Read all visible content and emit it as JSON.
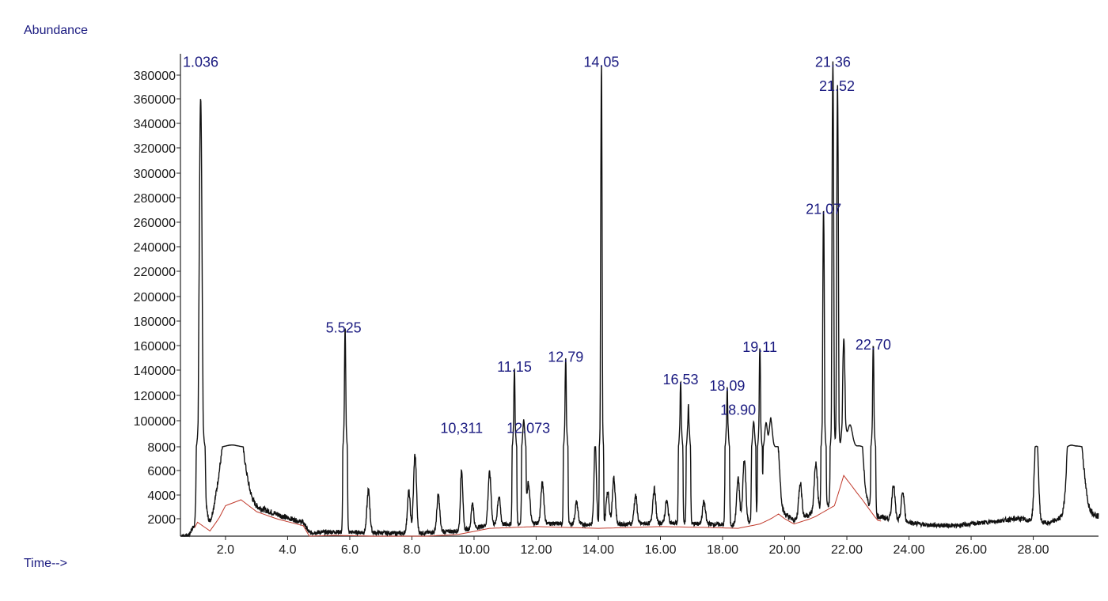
{
  "chart_data": {
    "type": "line",
    "ylabel": "Abundance",
    "xlabel": "Time-->",
    "x_ticks": [
      {
        "v": 2,
        "label": "2.0"
      },
      {
        "v": 4,
        "label": "4.0"
      },
      {
        "v": 6,
        "label": "6.0"
      },
      {
        "v": 8,
        "label": "8.0"
      },
      {
        "v": 10,
        "label": "10.00"
      },
      {
        "v": 12,
        "label": "12.00"
      },
      {
        "v": 14,
        "label": "14.00"
      },
      {
        "v": 16,
        "label": "16.00"
      },
      {
        "v": 18,
        "label": "18.00"
      },
      {
        "v": 20,
        "label": "20.00"
      },
      {
        "v": 22,
        "label": "22.00"
      },
      {
        "v": 24,
        "label": "24.00"
      },
      {
        "v": 26,
        "label": "26.00"
      },
      {
        "v": 28,
        "label": "28.00"
      }
    ],
    "y_ticks": [
      "2000",
      "4000",
      "6000",
      "8000",
      "100000",
      "120000",
      "140000",
      "160000",
      "180000",
      "200000",
      "220000",
      "240000",
      "260000",
      "280000",
      "300000",
      "320000",
      "340000",
      "360000",
      "380000"
    ],
    "peak_labels": [
      {
        "label": "1.036",
        "x": 1.2,
        "y": 388000
      },
      {
        "label": "5.525",
        "x": 5.8,
        "y": 172000
      },
      {
        "label": "10,311",
        "x": 9.6,
        "y": 62000
      },
      {
        "label": "11.15",
        "x": 11.3,
        "y": 140000
      },
      {
        "label": "12.073",
        "x": 11.75,
        "y": 62000
      },
      {
        "label": "12.79",
        "x": 12.95,
        "y": 148000
      },
      {
        "label": "14.05",
        "x": 14.1,
        "y": 388000
      },
      {
        "label": "16.53",
        "x": 16.65,
        "y": 130000
      },
      {
        "label": "18.09",
        "x": 18.15,
        "y": 125000
      },
      {
        "label": "18.90",
        "x": 18.5,
        "y": 106000
      },
      {
        "label": "19.11",
        "x": 19.2,
        "y": 156000
      },
      {
        "label": "21.07",
        "x": 21.25,
        "y": 268000
      },
      {
        "label": "21.36",
        "x": 21.55,
        "y": 388000
      },
      {
        "label": "21.52",
        "x": 21.68,
        "y": 368000
      },
      {
        "label": "22.70",
        "x": 22.85,
        "y": 158000
      }
    ],
    "series": [
      {
        "peaks": [
          [
            1.2,
            358000,
            0.05
          ],
          [
            1.32,
            2000,
            0.08
          ],
          [
            2.0,
            4500,
            0.25
          ],
          [
            2.2,
            5500,
            0.15
          ],
          [
            2.45,
            4000,
            0.2
          ],
          [
            5.85,
            174000,
            0.03
          ],
          [
            6.6,
            4000,
            0.05
          ],
          [
            7.9,
            4000,
            0.05
          ],
          [
            8.1,
            7000,
            0.05
          ],
          [
            8.85,
            3500,
            0.05
          ],
          [
            9.6,
            5500,
            0.04
          ],
          [
            9.95,
            2500,
            0.04
          ],
          [
            10.5,
            4500,
            0.05
          ],
          [
            10.8,
            2500,
            0.05
          ],
          [
            11.3,
            140000,
            0.03
          ],
          [
            11.6,
            100000,
            0.03
          ],
          [
            11.75,
            3500,
            0.05
          ],
          [
            12.2,
            3500,
            0.05
          ],
          [
            12.95,
            148000,
            0.03
          ],
          [
            13.3,
            2000,
            0.05
          ],
          [
            13.9,
            7000,
            0.04
          ],
          [
            14.1,
            388000,
            0.025
          ],
          [
            14.3,
            3000,
            0.05
          ],
          [
            14.5,
            4000,
            0.05
          ],
          [
            15.2,
            2500,
            0.05
          ],
          [
            15.8,
            3000,
            0.05
          ],
          [
            16.2,
            2000,
            0.05
          ],
          [
            16.65,
            130000,
            0.03
          ],
          [
            16.9,
            112000,
            0.03
          ],
          [
            17.4,
            2000,
            0.05
          ],
          [
            18.15,
            125000,
            0.03
          ],
          [
            18.5,
            4000,
            0.05
          ],
          [
            18.7,
            5500,
            0.05
          ],
          [
            19.0,
            95000,
            0.03
          ],
          [
            19.2,
            156000,
            0.03
          ],
          [
            19.4,
            90000,
            0.04
          ],
          [
            19.55,
            100000,
            0.05
          ],
          [
            19.75,
            6000,
            0.08
          ],
          [
            20.5,
            3000,
            0.05
          ],
          [
            21.0,
            4000,
            0.05
          ],
          [
            21.25,
            268000,
            0.03
          ],
          [
            21.55,
            388000,
            0.03
          ],
          [
            21.7,
            368000,
            0.03
          ],
          [
            21.9,
            156000,
            0.05
          ],
          [
            22.1,
            80000,
            0.08
          ],
          [
            22.4,
            7000,
            0.1
          ],
          [
            22.85,
            158000,
            0.03
          ],
          [
            23.5,
            3000,
            0.05
          ],
          [
            23.8,
            2500,
            0.05
          ],
          [
            28.1,
            8000,
            0.06
          ],
          [
            29.2,
            9000,
            0.1
          ],
          [
            29.45,
            7000,
            0.15
          ]
        ]
      }
    ]
  }
}
